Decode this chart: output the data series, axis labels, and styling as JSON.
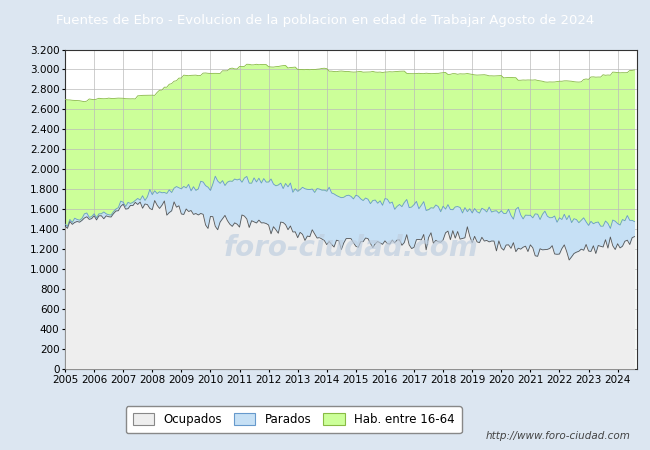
{
  "title": "Fuentes de Ebro - Evolucion de la poblacion en edad de Trabajar Agosto de 2024",
  "title_bg": "#4d7ebf",
  "title_color": "#ffffff",
  "fig_bg": "#dce6f1",
  "plot_bg": "#ffffff",
  "ylim": [
    0,
    3200
  ],
  "yticks": [
    0,
    200,
    400,
    600,
    800,
    1000,
    1200,
    1400,
    1600,
    1800,
    2000,
    2200,
    2400,
    2600,
    2800,
    3000,
    3200
  ],
  "color_hab": "#ccff99",
  "color_hab_line": "#88bb44",
  "color_parados": "#c6e0f5",
  "color_parados_line": "#6699cc",
  "color_ocupados": "#eeeeee",
  "color_ocupados_line": "#555555",
  "watermark": "http://www.foro-ciudad.com",
  "legend_labels": [
    "Ocupados",
    "Parados",
    "Hab. entre 16-64"
  ]
}
